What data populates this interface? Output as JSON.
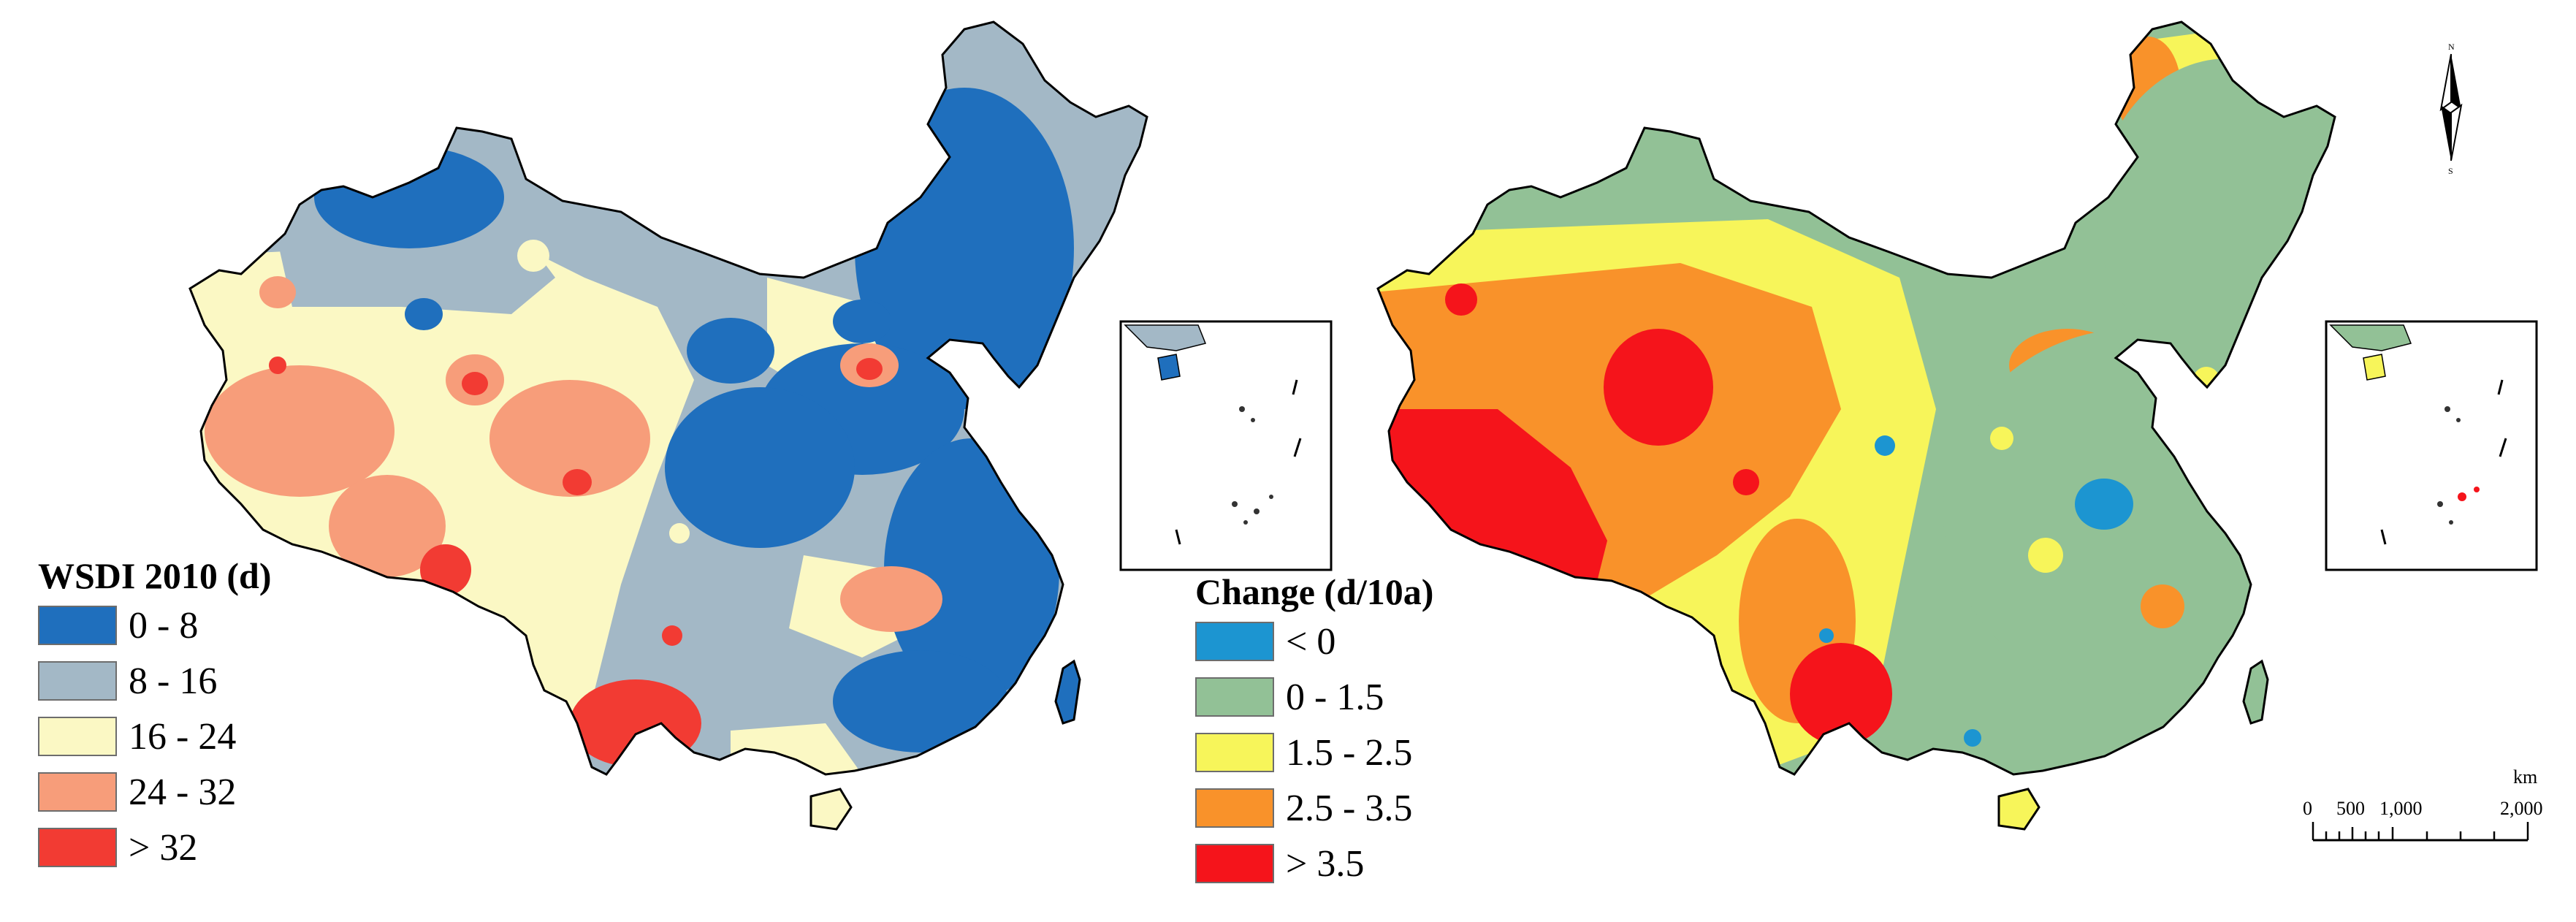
{
  "left_map": {
    "legend_title": "WSDI 2010 (d)",
    "classes": [
      {
        "label": "0 - 8",
        "color": "#1f6fbd"
      },
      {
        "label": "8 - 16",
        "color": "#a3b8c6"
      },
      {
        "label": "16 - 24",
        "color": "#fbf8c4"
      },
      {
        "label": "24 - 32",
        "color": "#f79d7a"
      },
      {
        "label": "> 32",
        "color": "#f23b33"
      }
    ]
  },
  "right_map": {
    "legend_title": "Change (d/10a)",
    "classes": [
      {
        "label": "< 0",
        "color": "#1c95d1"
      },
      {
        "label": "0 - 1.5",
        "color": "#92c196"
      },
      {
        "label": "1.5 - 2.5",
        "color": "#f7f55a"
      },
      {
        "label": "2.5 - 3.5",
        "color": "#f9922a"
      },
      {
        "label": "> 3.5",
        "color": "#f5141b"
      }
    ]
  },
  "scale_bar": {
    "unit": "km",
    "ticks": [
      "0",
      "500",
      "1,000",
      "2,000"
    ]
  },
  "north_arrow": {
    "n": "N",
    "s": "S",
    "icon": "north-arrow-icon"
  }
}
